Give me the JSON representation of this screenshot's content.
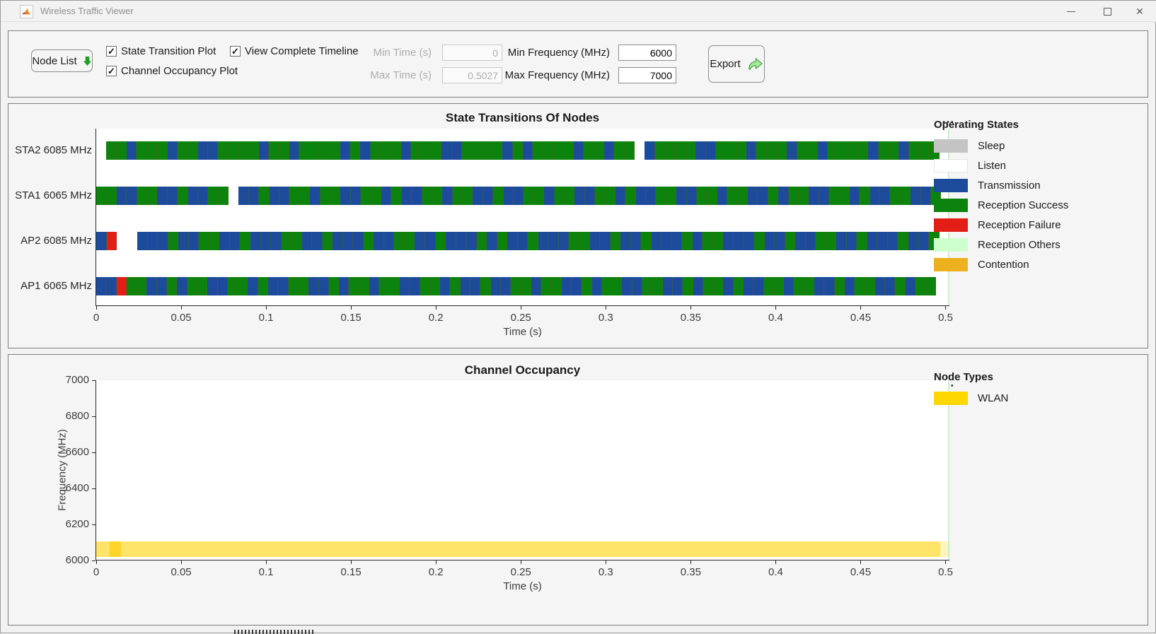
{
  "window": {
    "title": "Wireless Traffic Viewer",
    "icons": {
      "app_icon": "matlab-logo",
      "minimize": "minimize-icon",
      "maximize": "maximize-icon",
      "close": "close-icon"
    }
  },
  "toolbar": {
    "node_list": {
      "label": "Node List",
      "icon": "green-down-arrow-icon"
    },
    "checkboxes": [
      {
        "label": "State Transition Plot",
        "checked": true
      },
      {
        "label": "Channel Occupancy Plot",
        "checked": true
      },
      {
        "label": "View Complete Timeline",
        "checked": true
      }
    ],
    "fields": [
      {
        "label": "Min Time (s)",
        "value": "0",
        "disabled": true
      },
      {
        "label": "Max Time (s)",
        "value": "0.5027",
        "disabled": true
      },
      {
        "label": "Min Frequency (MHz)",
        "value": "6000",
        "disabled": false
      },
      {
        "label": "Max Frequency (MHz)",
        "value": "7000",
        "disabled": false
      }
    ],
    "export": {
      "label": "Export",
      "icon": "green-export-arrow-icon"
    }
  },
  "panel_menu_dots": "•••",
  "check_glyph": "✓",
  "chart_data": [
    {
      "type": "timeline",
      "title": "State Transitions Of Nodes",
      "xlabel": "Time (s)",
      "xlim": [
        0,
        0.5027
      ],
      "xticks": [
        0,
        0.05,
        0.1,
        0.15,
        0.2,
        0.25,
        0.3,
        0.35,
        0.4,
        0.45,
        0.5
      ],
      "xtick_labels": [
        "0",
        "0.05",
        "0.1",
        "0.15",
        "0.2",
        "0.25",
        "0.3",
        "0.35",
        "0.4",
        "0.45",
        "0.5"
      ],
      "state_colors": {
        "B": "#1C4B9C",
        "G": "#0C830C",
        "R": "#E21E16",
        "W": "#FFFFFF",
        "L": "#CCFFCC"
      },
      "end_marker_color": "#C9F3C9",
      "rows": [
        {
          "label": "STA2 6085 MHz",
          "start": 0,
          "end": 0.4965,
          "pattern": "WGGBGGGBGGBBGGGGBGGBGGGGBGBGGGBGGGBBGGGGBGBGGGGBGGBGGWBGGGGBBGGGBGGGBGGBGGGGBGGBGGG"
        },
        {
          "label": "STA1 6065 MHz",
          "start": 0,
          "end": 0.4975,
          "pattern": "GGBBGGBBGBBGGWBBGBBGGBGGBBGGBGBBGGBGGBBGBBGGBGGBBGGBGBBGGBBGGBGGBBGBGGBBGGBGBBGGBBG"
        },
        {
          "label": "AP2 6085 MHz",
          "start": 0,
          "end": 0.4965,
          "pattern": "BRWWBBBGBBGGBBGBBBGGBBGBBBGBBGGBBGBBBGBGBBGBBBGGBBGBBGBBBGBGGBBBGBBGBBGGBBGBBBGBBG"
        },
        {
          "label": "AP1 6065 MHz",
          "start": 0,
          "end": 0.494,
          "pattern": "BBRGGBBGBGGBBGGBGBBGGBBGBGGBGGBBGGBGBBGBBGGBGGBBGBGGBBGGBBGBGGBGBBGGBGGBBGBGGBBGBGG"
        }
      ],
      "legend_title": "Operating States",
      "legend": [
        {
          "label": "Sleep",
          "color": "#C4C4C4"
        },
        {
          "label": "Listen",
          "color": "#FFFFFF"
        },
        {
          "label": "Transmission",
          "color": "#1C4B9C"
        },
        {
          "label": "Reception Success",
          "color": "#0C830C"
        },
        {
          "label": "Reception Failure",
          "color": "#E21E16"
        },
        {
          "label": "Reception Others",
          "color": "#CCFFCC"
        },
        {
          "label": "Contention",
          "color": "#EDB120"
        }
      ]
    },
    {
      "type": "occupancy",
      "title": "Channel Occupancy",
      "xlabel": "Time (s)",
      "ylabel": "Frequency (MHz)",
      "xlim": [
        0,
        0.5027
      ],
      "ylim": [
        6000,
        7000
      ],
      "xticks": [
        0,
        0.05,
        0.1,
        0.15,
        0.2,
        0.25,
        0.3,
        0.35,
        0.4,
        0.45,
        0.5
      ],
      "xtick_labels": [
        "0",
        "0.05",
        "0.1",
        "0.15",
        "0.2",
        "0.25",
        "0.3",
        "0.35",
        "0.4",
        "0.45",
        "0.5"
      ],
      "yticks": [
        7000,
        6800,
        6600,
        6400,
        6200,
        6000
      ],
      "ytick_labels": [
        "7000",
        "6800",
        "6600",
        "6400",
        "6200",
        "6000"
      ],
      "end_marker_color": "#C9F3C9",
      "bands": [
        {
          "t_start": 0,
          "t_end": 0.497,
          "f_low": 6020,
          "f_high": 6105,
          "color": "#FFE469",
          "hairlines": true
        },
        {
          "t_start": 0.008,
          "t_end": 0.0145,
          "f_low": 6020,
          "f_high": 6105,
          "color": "#FFD428",
          "hairlines": false
        },
        {
          "t_start": 0.497,
          "t_end": 0.5027,
          "f_low": 6020,
          "f_high": 6105,
          "color": "#FFF3BE",
          "hairlines": false
        }
      ],
      "legend_title": "Node Types",
      "legend": [
        {
          "label": "WLAN",
          "color": "#FFD700"
        }
      ]
    }
  ]
}
